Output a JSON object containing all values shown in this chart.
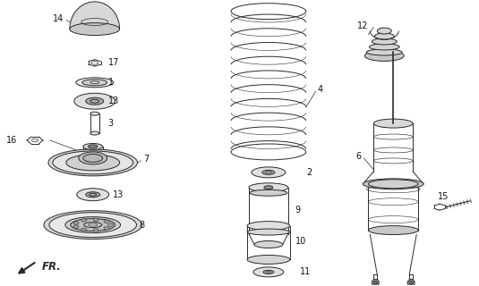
{
  "bg_color": "#ffffff",
  "line_color": "#2a2a2a",
  "fr_arrow_text": "FR.",
  "label_fontsize": 7.0,
  "label_color": "#111111",
  "fig_w": 5.35,
  "fig_h": 3.2,
  "dpi": 100
}
